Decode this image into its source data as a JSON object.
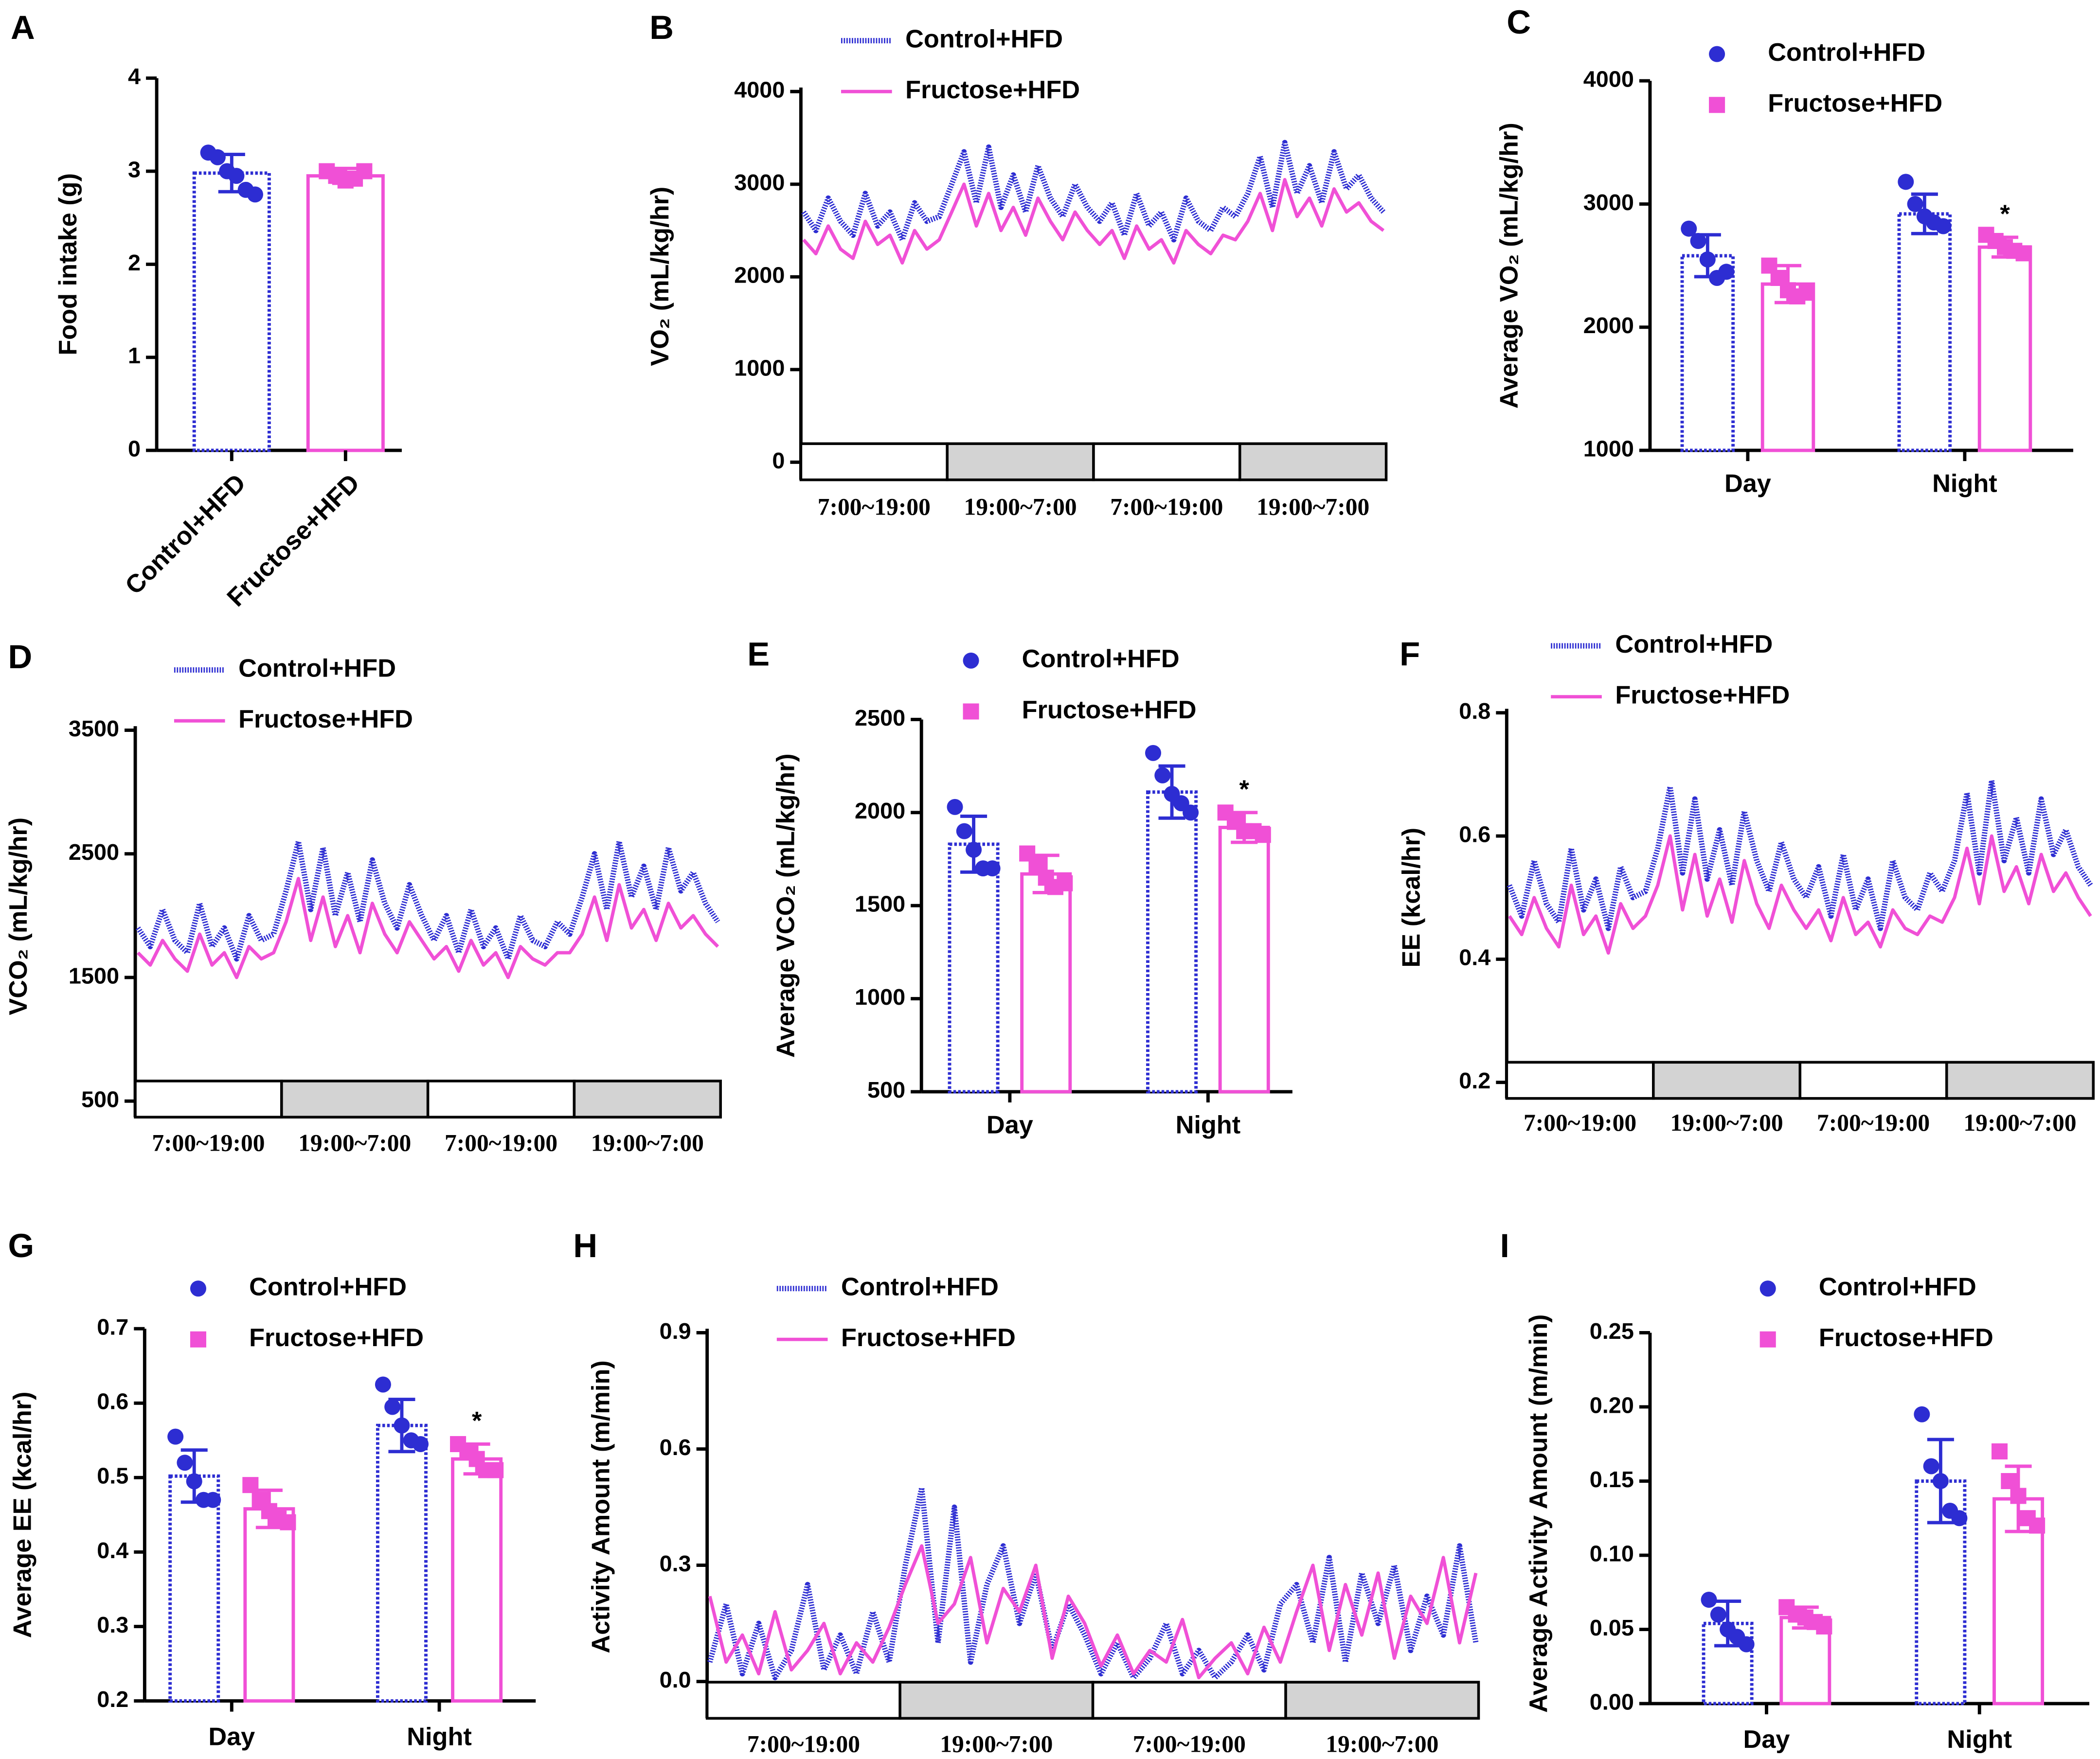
{
  "chart_data": [
    {
      "panel": "A",
      "type": "bar",
      "ylabel": "Food intake (g)",
      "categories": [
        "Control+HFD",
        "Fructose+HFD"
      ],
      "values": [
        2.98,
        2.95
      ],
      "errors": [
        0.2,
        0.08
      ],
      "colors": [
        "#2d2dd2",
        "#f050d6"
      ],
      "points": [
        [
          3.2,
          3.15,
          3.0,
          2.95,
          2.8,
          2.75
        ],
        [
          3.0,
          2.95,
          2.9,
          2.92,
          3.0
        ]
      ],
      "ylim": [
        0,
        4
      ],
      "yticks": [
        0,
        1,
        2,
        3,
        4
      ]
    },
    {
      "panel": "B",
      "type": "line",
      "ylabel": "VO₂ (mL/kg/hr)",
      "periods": [
        "7:00~19:00",
        "19:00~7:00",
        "7:00~19:00",
        "19:00~7:00"
      ],
      "ylim": [
        -190,
        4000
      ],
      "yticks": [
        0,
        1000,
        2000,
        3000,
        4000
      ],
      "series": [
        {
          "name": "Control+HFD",
          "color": "#2d2dd2",
          "values": [
            2700,
            2500,
            2850,
            2600,
            2450,
            2900,
            2550,
            2700,
            2400,
            2800,
            2600,
            2650,
            3000,
            3350,
            2800,
            3400,
            2750,
            3100,
            2700,
            3200,
            2850,
            2650,
            3000,
            2750,
            2600,
            2800,
            2450,
            2900,
            2550,
            2700,
            2400,
            2850,
            2600,
            2500,
            2750,
            2650,
            2900,
            3300,
            2750,
            3450,
            2900,
            3200,
            2800,
            3350,
            2950,
            3100,
            2850,
            2700
          ]
        },
        {
          "name": "Fructose+HFD",
          "color": "#f050d6",
          "values": [
            2400,
            2250,
            2550,
            2300,
            2200,
            2600,
            2350,
            2450,
            2150,
            2500,
            2300,
            2400,
            2700,
            3000,
            2550,
            2900,
            2500,
            2750,
            2450,
            2850,
            2600,
            2400,
            2700,
            2500,
            2350,
            2500,
            2200,
            2550,
            2300,
            2400,
            2150,
            2500,
            2350,
            2250,
            2450,
            2400,
            2600,
            2900,
            2500,
            3050,
            2650,
            2850,
            2550,
            2950,
            2700,
            2800,
            2600,
            2500
          ]
        }
      ]
    },
    {
      "panel": "C",
      "type": "bar",
      "ylabel": "Average VO₂ (mL/kg/hr)",
      "categories": [
        "Day",
        "Night"
      ],
      "ylim": [
        1000,
        4000
      ],
      "yticks": [
        1000,
        2000,
        3000,
        4000
      ],
      "series": [
        {
          "name": "Control+HFD",
          "color": "#2d2dd2",
          "values": [
            2580,
            2920
          ],
          "errors": [
            170,
            160
          ],
          "points": [
            [
              2800,
              2700,
              2550,
              2400,
              2450
            ],
            [
              3180,
              3000,
              2900,
              2850,
              2820
            ]
          ]
        },
        {
          "name": "Fructose+HFD",
          "color": "#f050d6",
          "values": [
            2350,
            2650
          ],
          "errors": [
            150,
            80
          ],
          "points": [
            [
              2500,
              2400,
              2300,
              2250,
              2280
            ],
            [
              2750,
              2700,
              2650,
              2620,
              2600
            ]
          ],
          "annotation": "*",
          "annotation_category": "Night"
        }
      ]
    },
    {
      "panel": "D",
      "type": "line",
      "ylabel": "VCO₂ (mL/kg/hr)",
      "periods": [
        "7:00~19:00",
        "19:00~7:00",
        "7:00~19:00",
        "19:00~7:00"
      ],
      "ylim": [
        370,
        3500
      ],
      "yticks": [
        500,
        1500,
        2500,
        3500
      ],
      "series": [
        {
          "name": "Control+HFD",
          "color": "#2d2dd2",
          "values": [
            1900,
            1750,
            2050,
            1800,
            1700,
            2100,
            1750,
            1900,
            1650,
            2000,
            1800,
            1850,
            2200,
            2600,
            2050,
            2550,
            2000,
            2350,
            1950,
            2450,
            2100,
            1900,
            2250,
            2000,
            1800,
            2000,
            1700,
            2050,
            1750,
            1900,
            1650,
            2000,
            1800,
            1750,
            1950,
            1850,
            2150,
            2500,
            2050,
            2600,
            2150,
            2400,
            2050,
            2550,
            2200,
            2350,
            2100,
            1950
          ]
        },
        {
          "name": "Fructose+HFD",
          "color": "#f050d6",
          "values": [
            1700,
            1600,
            1800,
            1650,
            1550,
            1850,
            1600,
            1700,
            1500,
            1750,
            1650,
            1700,
            1950,
            2300,
            1800,
            2150,
            1750,
            2000,
            1700,
            2100,
            1850,
            1700,
            1950,
            1800,
            1650,
            1750,
            1550,
            1800,
            1600,
            1700,
            1500,
            1750,
            1650,
            1600,
            1700,
            1700,
            1850,
            2150,
            1800,
            2250,
            1900,
            2050,
            1800,
            2100,
            1900,
            2000,
            1850,
            1750
          ]
        }
      ]
    },
    {
      "panel": "E",
      "type": "bar",
      "ylabel": "Average VCO₂ (mL/kg/hr)",
      "categories": [
        "Day",
        "Night"
      ],
      "ylim": [
        500,
        2500
      ],
      "yticks": [
        500,
        1000,
        1500,
        2000,
        2500
      ],
      "series": [
        {
          "name": "Control+HFD",
          "color": "#2d2dd2",
          "values": [
            1830,
            2110
          ],
          "errors": [
            150,
            140
          ],
          "points": [
            [
              2030,
              1900,
              1800,
              1700,
              1700
            ],
            [
              2320,
              2200,
              2100,
              2050,
              2000
            ]
          ]
        },
        {
          "name": "Fructose+HFD",
          "color": "#f050d6",
          "values": [
            1670,
            1920
          ],
          "errors": [
            100,
            80
          ],
          "points": [
            [
              1780,
              1720,
              1650,
              1600,
              1620
            ],
            [
              2000,
              1950,
              1900,
              1900,
              1880
            ]
          ],
          "annotation": "*",
          "annotation_category": "Night"
        }
      ]
    },
    {
      "panel": "F",
      "type": "line",
      "ylabel": "EE (kcal/hr)",
      "periods": [
        "7:00~19:00",
        "19:00~7:00",
        "7:00~19:00",
        "19:00~7:00"
      ],
      "ylim": [
        0.174,
        0.8
      ],
      "yticks": [
        0.2,
        0.4,
        0.6,
        0.8
      ],
      "series": [
        {
          "name": "Control+HFD",
          "color": "#2d2dd2",
          "values": [
            0.52,
            0.47,
            0.56,
            0.49,
            0.46,
            0.58,
            0.48,
            0.53,
            0.45,
            0.55,
            0.5,
            0.51,
            0.58,
            0.68,
            0.54,
            0.66,
            0.53,
            0.61,
            0.52,
            0.64,
            0.56,
            0.51,
            0.59,
            0.53,
            0.5,
            0.55,
            0.47,
            0.57,
            0.48,
            0.53,
            0.45,
            0.56,
            0.5,
            0.48,
            0.54,
            0.51,
            0.56,
            0.67,
            0.54,
            0.69,
            0.56,
            0.63,
            0.54,
            0.66,
            0.57,
            0.61,
            0.55,
            0.52
          ]
        },
        {
          "name": "Fructose+HFD",
          "color": "#f050d6",
          "values": [
            0.47,
            0.44,
            0.5,
            0.45,
            0.42,
            0.52,
            0.44,
            0.47,
            0.41,
            0.49,
            0.45,
            0.47,
            0.52,
            0.6,
            0.48,
            0.57,
            0.47,
            0.53,
            0.46,
            0.56,
            0.49,
            0.45,
            0.52,
            0.48,
            0.45,
            0.48,
            0.43,
            0.5,
            0.44,
            0.46,
            0.42,
            0.48,
            0.45,
            0.44,
            0.47,
            0.46,
            0.5,
            0.58,
            0.49,
            0.6,
            0.51,
            0.55,
            0.49,
            0.57,
            0.51,
            0.54,
            0.5,
            0.47
          ]
        }
      ]
    },
    {
      "panel": "G",
      "type": "bar",
      "ylabel": "Average EE (kcal/hr)",
      "categories": [
        "Day",
        "Night"
      ],
      "ylim": [
        0.2,
        0.7
      ],
      "yticks": [
        0.2,
        0.3,
        0.4,
        0.5,
        0.6,
        0.7
      ],
      "series": [
        {
          "name": "Control+HFD",
          "color": "#2d2dd2",
          "values": [
            0.502,
            0.57
          ],
          "errors": [
            0.035,
            0.035
          ],
          "points": [
            [
              0.555,
              0.52,
              0.495,
              0.47,
              0.47
            ],
            [
              0.625,
              0.595,
              0.57,
              0.55,
              0.545
            ]
          ]
        },
        {
          "name": "Fructose+HFD",
          "color": "#f050d6",
          "values": [
            0.458,
            0.525
          ],
          "errors": [
            0.025,
            0.02
          ],
          "points": [
            [
              0.49,
              0.47,
              0.455,
              0.445,
              0.44
            ],
            [
              0.545,
              0.535,
              0.525,
              0.51,
              0.51
            ]
          ],
          "annotation": "*",
          "annotation_category": "Night"
        }
      ]
    },
    {
      "panel": "H",
      "type": "line",
      "ylabel": "Activity Amount (m/min)",
      "periods": [
        "7:00~19:00",
        "19:00~7:00",
        "7:00~19:00",
        "19:00~7:00"
      ],
      "ylim": [
        -0.095,
        0.9
      ],
      "yticks": [
        {
          "value": 0,
          "label": "0.0"
        },
        0.3,
        0.6,
        0.9
      ],
      "series": [
        {
          "name": "Control+HFD",
          "color": "#2d2dd2",
          "values": [
            0.05,
            0.2,
            0.02,
            0.15,
            0.01,
            0.08,
            0.25,
            0.03,
            0.12,
            0.02,
            0.18,
            0.05,
            0.3,
            0.5,
            0.1,
            0.45,
            0.05,
            0.25,
            0.35,
            0.15,
            0.28,
            0.08,
            0.2,
            0.12,
            0.02,
            0.1,
            0.01,
            0.06,
            0.15,
            0.02,
            0.08,
            0.01,
            0.05,
            0.12,
            0.03,
            0.2,
            0.25,
            0.1,
            0.32,
            0.05,
            0.28,
            0.15,
            0.3,
            0.08,
            0.22,
            0.12,
            0.35,
            0.1
          ]
        },
        {
          "name": "Fructose+HFD",
          "color": "#f050d6",
          "values": [
            0.22,
            0.05,
            0.12,
            0.02,
            0.18,
            0.03,
            0.08,
            0.15,
            0.02,
            0.1,
            0.05,
            0.14,
            0.25,
            0.35,
            0.15,
            0.2,
            0.32,
            0.1,
            0.24,
            0.18,
            0.3,
            0.06,
            0.22,
            0.15,
            0.04,
            0.12,
            0.02,
            0.08,
            0.05,
            0.16,
            0.01,
            0.06,
            0.1,
            0.02,
            0.14,
            0.05,
            0.18,
            0.3,
            0.08,
            0.25,
            0.12,
            0.28,
            0.06,
            0.22,
            0.15,
            0.32,
            0.1,
            0.28
          ]
        }
      ]
    },
    {
      "panel": "I",
      "type": "bar",
      "ylabel": "Average Activity Amount (m/min)",
      "categories": [
        "Day",
        "Night"
      ],
      "ylim": [
        0,
        0.25
      ],
      "yticks": [
        {
          "value": 0,
          "label": "0.00"
        },
        {
          "value": 0.05,
          "label": "0.05"
        },
        {
          "value": 0.1,
          "label": "0.10"
        },
        {
          "value": 0.15,
          "label": "0.15"
        },
        {
          "value": 0.2,
          "label": "0.20"
        },
        {
          "value": 0.25,
          "label": "0.25"
        }
      ],
      "series": [
        {
          "name": "Control+HFD",
          "color": "#2d2dd2",
          "values": [
            0.054,
            0.15
          ],
          "errors": [
            0.015,
            0.028
          ],
          "points": [
            [
              0.07,
              0.06,
              0.05,
              0.045,
              0.04
            ],
            [
              0.195,
              0.16,
              0.15,
              0.13,
              0.125
            ]
          ]
        },
        {
          "name": "Fructose+HFD",
          "color": "#f050d6",
          "values": [
            0.058,
            0.138
          ],
          "errors": [
            0.007,
            0.022
          ],
          "points": [
            [
              0.065,
              0.06,
              0.058,
              0.055,
              0.052
            ],
            [
              0.17,
              0.15,
              0.14,
              0.125,
              0.12
            ]
          ]
        }
      ]
    }
  ]
}
